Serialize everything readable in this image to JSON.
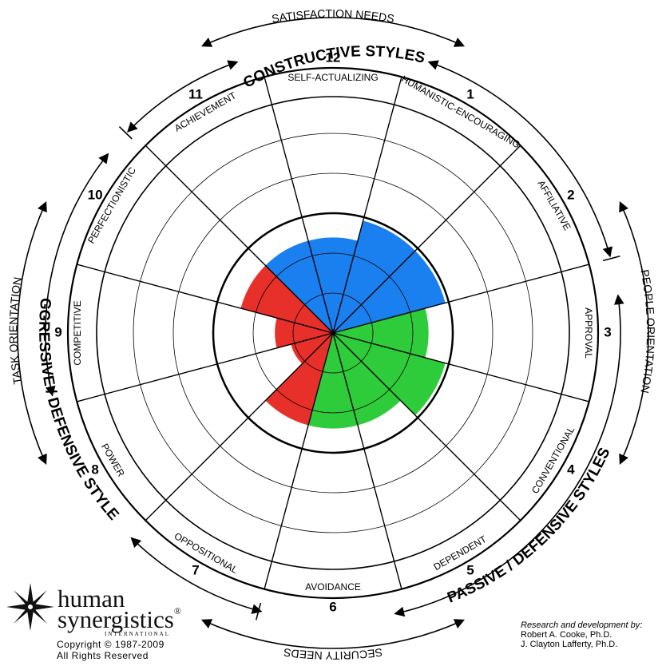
{
  "title": "CONSTRUCTIVE STYLES",
  "passive_title": "PASSIVE / DEFENSIVE STYLES",
  "aggressive_title": "AGGRESSIVE / DEFENSIVE STYLES",
  "satisfaction_needs": "SATISFACTION NEEDS",
  "security_needs": "SECURITY NEEDS",
  "task_orientation": "TASK ORIENTATION",
  "people_orientation": "PEOPLE ORIENTATION",
  "colors": {
    "constructive": "#1a80f0",
    "passive": "#2ecc3a",
    "aggressive": "#e8302a"
  },
  "segments": [
    {
      "number": "1",
      "label": "HUMANISTIC-ENCOURAGING",
      "group": "constructive",
      "level": 0.56
    },
    {
      "number": "2",
      "label": "AFFILIATIVE",
      "group": "constructive",
      "level": 0.56
    },
    {
      "number": "3",
      "label": "APPROVAL",
      "group": "passive",
      "level": 0.46
    },
    {
      "number": "4",
      "label": "CONVENTIONAL",
      "group": "passive",
      "level": 0.56
    },
    {
      "number": "5",
      "label": "DEPENDENT",
      "group": "passive",
      "level": 0.46
    },
    {
      "number": "6",
      "label": "AVOIDANCE",
      "group": "passive",
      "level": 0.46
    },
    {
      "number": "7",
      "label": "OPPOSITIONAL",
      "group": "aggressive",
      "level": 0.46
    },
    {
      "number": "8",
      "label": "POWER",
      "group": "aggressive",
      "level": 0.21
    },
    {
      "number": "9",
      "label": "COMPETITIVE",
      "group": "aggressive",
      "level": 0.28
    },
    {
      "number": "10",
      "label": "PERFECTIONISTIC",
      "group": "aggressive",
      "level": 0.46
    },
    {
      "number": "11",
      "label": "ACHIEVEMENT",
      "group": "constructive",
      "level": 0.46
    },
    {
      "number": "12",
      "label": "SELF-ACTUALIZING",
      "group": "constructive",
      "level": 0.46
    }
  ],
  "logo": {
    "brand_line1": "human",
    "brand_line2": "synergistics",
    "registered": "®",
    "international": "INTERNATIONAL",
    "copyright": "Copyright © 1987-2009",
    "rights": "All Rights Reserved",
    "icon": "compass-star-icon"
  },
  "credits": {
    "heading": "Research and development by:",
    "author1": "Robert A. Cooke, Ph.D.",
    "author2": "J. Clayton Lafferty, Ph.D."
  }
}
